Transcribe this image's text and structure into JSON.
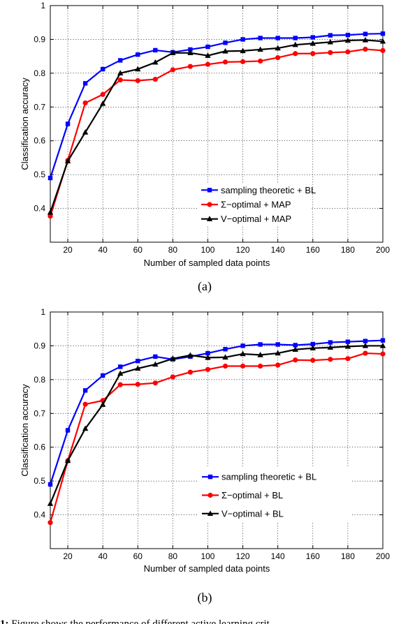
{
  "caption": {
    "label": "1:",
    "text": "Figure shows the performance of different active learning crit"
  },
  "chart_data": [
    {
      "type": "line",
      "subcaption": "(a)",
      "xlabel": "Number of sampled data points",
      "ylabel": "Classification accuracy",
      "xlim": [
        10,
        200
      ],
      "ylim": [
        0.3,
        1
      ],
      "xticks": [
        20,
        40,
        60,
        80,
        100,
        120,
        140,
        160,
        180,
        200
      ],
      "yticks": [
        0.4,
        0.5,
        0.6,
        0.7,
        0.8,
        0.9,
        1
      ],
      "ytick_labels": [
        "0.4",
        "0.5",
        "0.6",
        "0.7",
        "0.8",
        "0.9",
        "1"
      ],
      "grid": true,
      "legend_position": "lower-right",
      "x": [
        10,
        20,
        30,
        40,
        50,
        60,
        70,
        80,
        90,
        100,
        110,
        120,
        130,
        140,
        150,
        160,
        170,
        180,
        190,
        200
      ],
      "series": [
        {
          "name": "sampling theoretic + BL",
          "color": "#0000ff",
          "marker": "square",
          "values": [
            0.49,
            0.65,
            0.77,
            0.812,
            0.838,
            0.855,
            0.868,
            0.862,
            0.87,
            0.878,
            0.89,
            0.9,
            0.904,
            0.904,
            0.904,
            0.906,
            0.912,
            0.913,
            0.916,
            0.917
          ]
        },
        {
          "name": "Σ−optimal + MAP",
          "color": "#ff0000",
          "marker": "circle",
          "values": [
            0.377,
            0.542,
            0.712,
            0.737,
            0.78,
            0.778,
            0.782,
            0.81,
            0.82,
            0.826,
            0.833,
            0.834,
            0.836,
            0.846,
            0.858,
            0.858,
            0.861,
            0.863,
            0.871,
            0.867
          ]
        },
        {
          "name": "V−optimal + MAP",
          "color": "#000000",
          "marker": "triangle",
          "values": [
            0.388,
            0.54,
            0.625,
            0.71,
            0.8,
            0.812,
            0.832,
            0.86,
            0.86,
            0.852,
            0.865,
            0.866,
            0.87,
            0.874,
            0.884,
            0.888,
            0.892,
            0.897,
            0.898,
            0.894
          ]
        }
      ]
    },
    {
      "type": "line",
      "subcaption": "(b)",
      "xlabel": "Number of sampled data points",
      "ylabel": "Classification accuracy",
      "xlim": [
        10,
        200
      ],
      "ylim": [
        0.3,
        1
      ],
      "xticks": [
        20,
        40,
        60,
        80,
        100,
        120,
        140,
        160,
        180,
        200
      ],
      "yticks": [
        0.4,
        0.5,
        0.6,
        0.7,
        0.8,
        0.9,
        1
      ],
      "ytick_labels": [
        "0.4",
        "0.5",
        "0.6",
        "0.7",
        "0.8",
        "0.9",
        "1"
      ],
      "grid": true,
      "legend_position": "lower-right",
      "x": [
        10,
        20,
        30,
        40,
        50,
        60,
        70,
        80,
        90,
        100,
        110,
        120,
        130,
        140,
        150,
        160,
        170,
        180,
        190,
        200
      ],
      "series": [
        {
          "name": "sampling theoretic + BL",
          "color": "#0000ff",
          "marker": "square",
          "values": [
            0.49,
            0.65,
            0.768,
            0.812,
            0.838,
            0.855,
            0.868,
            0.86,
            0.868,
            0.878,
            0.89,
            0.9,
            0.904,
            0.904,
            0.902,
            0.905,
            0.91,
            0.912,
            0.914,
            0.916
          ]
        },
        {
          "name": "Σ−optimal + BL",
          "color": "#ff0000",
          "marker": "circle",
          "values": [
            0.377,
            0.56,
            0.727,
            0.738,
            0.785,
            0.786,
            0.79,
            0.808,
            0.822,
            0.83,
            0.84,
            0.84,
            0.84,
            0.843,
            0.858,
            0.857,
            0.86,
            0.862,
            0.878,
            0.876
          ]
        },
        {
          "name": "V−optimal + BL",
          "color": "#000000",
          "marker": "triangle",
          "values": [
            0.433,
            0.56,
            0.655,
            0.726,
            0.818,
            0.833,
            0.845,
            0.862,
            0.872,
            0.865,
            0.866,
            0.876,
            0.873,
            0.878,
            0.889,
            0.893,
            0.895,
            0.898,
            0.9,
            0.9
          ]
        }
      ]
    }
  ]
}
